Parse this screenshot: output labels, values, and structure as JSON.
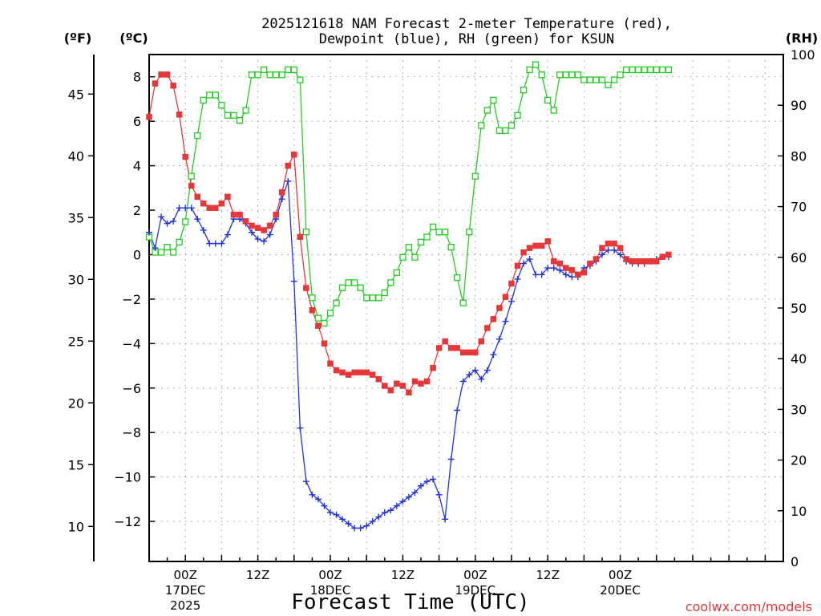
{
  "chart_data": {
    "type": "line",
    "title_line1": "2025121618 NAM Forecast 2-meter Temperature (red),",
    "title_line2": "Dewpoint (blue), RH (green) for KSUN",
    "units": {
      "fahrenheit": "(ºF)",
      "celsius": "(ºC)",
      "rh": "(RH)"
    },
    "xlabel": "Forecast Time (UTC)",
    "credit": "coolwx.com/models",
    "colors": {
      "temperature": "#e5373a",
      "dewpoint": "#2233dd",
      "rh": "#22cc22",
      "grid": "#9a9a9a"
    },
    "x_range_hours": [
      -6,
      99
    ],
    "celsius_ylim": [
      -13.8,
      9.0
    ],
    "rh_ylim": [
      0,
      100
    ],
    "celsius_ticks": [
      8,
      6,
      4,
      2,
      0,
      -2,
      -4,
      -6,
      -8,
      -10,
      -12
    ],
    "celsius_tick_labels": [
      "8",
      "6",
      "4",
      "2",
      "0",
      "−2",
      "−4",
      "−6",
      "−8",
      "−10",
      "−12"
    ],
    "fahrenheit_ticks": [
      45,
      40,
      35,
      30,
      25,
      20,
      15,
      10
    ],
    "fahrenheit_tick_labels": [
      "45",
      "40",
      "35",
      "30",
      "25",
      "20",
      "15",
      "10"
    ],
    "rh_ticks": [
      100,
      90,
      80,
      70,
      60,
      50,
      40,
      30,
      20,
      10,
      0
    ],
    "rh_tick_labels": [
      "100",
      "90",
      "80",
      "70",
      "60",
      "50",
      "40",
      "30",
      "20",
      "10",
      "0"
    ],
    "x_ticks": [
      {
        "hour": 0,
        "label": "00Z",
        "date": "17DEC",
        "year": "2025"
      },
      {
        "hour": 12,
        "label": "12Z",
        "date": "",
        "year": ""
      },
      {
        "hour": 24,
        "label": "00Z",
        "date": "18DEC",
        "year": ""
      },
      {
        "hour": 36,
        "label": "12Z",
        "date": "",
        "year": ""
      },
      {
        "hour": 48,
        "label": "00Z",
        "date": "19DEC",
        "year": ""
      },
      {
        "hour": 60,
        "label": "12Z",
        "date": "",
        "year": ""
      },
      {
        "hour": 72,
        "label": "00Z",
        "date": "20DEC",
        "year": ""
      }
    ],
    "x_hours": [
      -6,
      -5,
      -4,
      -3,
      -2,
      -1,
      0,
      1,
      2,
      3,
      4,
      5,
      6,
      7,
      8,
      9,
      10,
      11,
      12,
      13,
      14,
      15,
      16,
      17,
      18,
      19,
      20,
      21,
      22,
      23,
      24,
      25,
      26,
      27,
      28,
      29,
      30,
      31,
      32,
      33,
      34,
      35,
      36,
      37,
      38,
      39,
      40,
      41,
      42,
      43,
      44,
      45,
      46,
      47,
      48,
      49,
      50,
      51,
      52,
      53,
      54,
      55,
      56,
      57,
      58,
      59,
      60,
      61,
      62,
      63,
      64,
      65,
      66,
      67,
      68,
      69,
      70,
      71,
      72,
      73,
      74,
      75,
      76,
      77,
      78,
      79,
      80,
      81,
      82,
      83,
      84
    ],
    "series": [
      {
        "name": "Temperature (ºC)",
        "values": [
          6.2,
          7.7,
          8.1,
          8.1,
          7.6,
          6.3,
          4.4,
          3.1,
          2.6,
          2.3,
          2.1,
          2.1,
          2.3,
          2.6,
          1.8,
          1.8,
          1.5,
          1.3,
          1.2,
          1.1,
          1.3,
          1.8,
          2.8,
          4.0,
          4.5,
          0.8,
          -1.5,
          -2.5,
          -3.2,
          -4.0,
          -4.9,
          -5.2,
          -5.3,
          -5.4,
          -5.3,
          -5.3,
          -5.3,
          -5.4,
          -5.6,
          -5.9,
          -6.1,
          -5.8,
          -5.9,
          -6.2,
          -5.7,
          -5.8,
          -5.7,
          -5.1,
          -4.2,
          -3.9,
          -4.2,
          -4.2,
          -4.4,
          -4.4,
          -4.4,
          -3.9,
          -3.3,
          -2.9,
          -2.4,
          -1.9,
          -1.3,
          -0.5,
          0.1,
          0.3,
          0.4,
          0.4,
          0.6,
          -0.3,
          -0.4,
          -0.6,
          -0.7,
          -0.9,
          -0.8,
          -0.4,
          -0.2,
          0.3,
          0.5,
          0.5,
          0.3,
          -0.2,
          -0.3,
          -0.3,
          -0.3,
          -0.3,
          -0.3,
          -0.1,
          0.0
        ]
      },
      {
        "name": "Dewpoint (ºC)",
        "values": [
          1.0,
          0.3,
          1.7,
          1.4,
          1.5,
          2.1,
          2.1,
          2.1,
          1.6,
          1.1,
          0.5,
          0.5,
          0.5,
          0.9,
          1.6,
          1.6,
          1.4,
          1.0,
          0.7,
          0.6,
          0.9,
          1.6,
          2.5,
          3.3,
          -1.2,
          -7.8,
          -10.2,
          -10.8,
          -11.0,
          -11.3,
          -11.6,
          -11.7,
          -11.9,
          -12.1,
          -12.3,
          -12.3,
          -12.2,
          -12.0,
          -11.8,
          -11.6,
          -11.5,
          -11.3,
          -11.1,
          -10.9,
          -10.7,
          -10.4,
          -10.2,
          -10.1,
          -10.8,
          -11.9,
          -9.2,
          -7.0,
          -5.7,
          -5.4,
          -5.2,
          -5.6,
          -5.2,
          -4.5,
          -3.8,
          -3.0,
          -2.1,
          -1.1,
          -0.4,
          -0.2,
          -0.9,
          -0.9,
          -0.6,
          -0.6,
          -0.7,
          -0.9,
          -1.0,
          -1.0,
          -0.6,
          -0.5,
          -0.3,
          0.0,
          0.2,
          0.2,
          0.0,
          -0.3,
          -0.4,
          -0.4,
          -0.4,
          -0.3,
          -0.2,
          -0.1,
          -0.1
        ]
      },
      {
        "name": "RH (%)",
        "values": [
          64,
          61,
          61,
          62,
          61,
          63,
          67,
          76,
          84,
          91,
          92,
          92,
          90,
          88,
          88,
          87,
          89,
          96,
          96,
          97,
          96,
          96,
          96,
          97,
          97,
          95,
          65,
          52,
          48,
          47,
          49,
          51,
          54,
          55,
          55,
          54,
          52,
          52,
          52,
          53,
          55,
          57,
          60,
          62,
          60,
          63,
          64,
          66,
          65,
          65,
          62,
          56,
          51,
          65,
          76,
          86,
          89,
          91,
          85,
          85,
          86,
          88,
          93,
          97,
          98,
          96,
          91,
          89,
          96,
          96,
          96,
          96,
          95,
          95,
          95,
          95,
          94,
          95,
          96,
          97,
          97,
          97,
          97,
          97,
          97,
          97,
          97
        ]
      }
    ]
  }
}
